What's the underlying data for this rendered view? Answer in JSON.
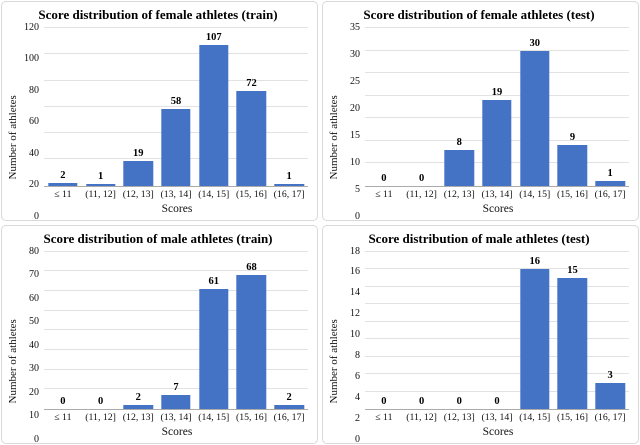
{
  "style": {
    "bar_color": "#4472C4",
    "grid_color": "#e2e2e2",
    "axis_color": "#ababab",
    "panel_border_color": "#d9d9d9",
    "background": "#ffffff"
  },
  "chart_data": [
    {
      "type": "bar",
      "title": "Score distribution of female athletes (train)",
      "xlabel": "Scores",
      "ylabel": "Number of athletes",
      "categories": [
        "≤ 11",
        "(11, 12]",
        "(12, 13]",
        "(13, 14]",
        "(14, 15]",
        "(15, 16]",
        "(16, 17]"
      ],
      "values": [
        2,
        1,
        19,
        58,
        107,
        72,
        1
      ],
      "ylim": [
        0,
        120
      ],
      "yticks": [
        0,
        20,
        40,
        60,
        80,
        100,
        120
      ],
      "grid": true,
      "legend": "none"
    },
    {
      "type": "bar",
      "title": "Score distribution of female athletes (test)",
      "xlabel": "Scores",
      "ylabel": "Number of athletes",
      "categories": [
        "≤ 11",
        "(11, 12]",
        "(12, 13]",
        "(13, 14]",
        "(14, 15]",
        "(15, 16]",
        "(16, 17]"
      ],
      "values": [
        0,
        0,
        8,
        19,
        30,
        9,
        1
      ],
      "ylim": [
        0,
        35
      ],
      "yticks": [
        0,
        5,
        10,
        15,
        20,
        25,
        30,
        35
      ],
      "grid": true,
      "legend": "none"
    },
    {
      "type": "bar",
      "title": "Score distribution of male athletes (train)",
      "xlabel": "Scores",
      "ylabel": "Number of athletes",
      "categories": [
        "≤ 11",
        "(11, 12]",
        "(12, 13]",
        "(13, 14]",
        "(14, 15]",
        "(15, 16]",
        "(16, 17]"
      ],
      "values": [
        0,
        0,
        2,
        7,
        61,
        68,
        2
      ],
      "ylim": [
        0,
        80
      ],
      "yticks": [
        0,
        10,
        20,
        30,
        40,
        50,
        60,
        70,
        80
      ],
      "grid": true,
      "legend": "none"
    },
    {
      "type": "bar",
      "title": "Score distribution of male athletes (test)",
      "xlabel": "Scores",
      "ylabel": "Number of athletes",
      "categories": [
        "≤ 11",
        "(11, 12]",
        "(12, 13]",
        "(13, 14]",
        "(14, 15]",
        "(15, 16]",
        "(16, 17]"
      ],
      "values": [
        0,
        0,
        0,
        0,
        16,
        15,
        3
      ],
      "ylim": [
        0,
        18
      ],
      "yticks": [
        0,
        2,
        4,
        6,
        8,
        10,
        12,
        14,
        16,
        18
      ],
      "grid": true,
      "legend": "none"
    }
  ]
}
